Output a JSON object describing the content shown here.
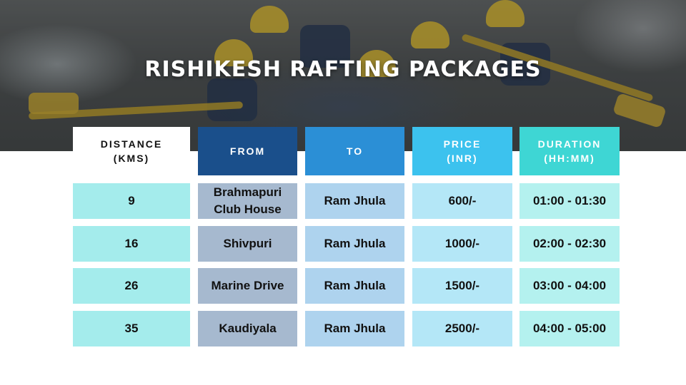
{
  "title": "RISHIKESH RAFTING PACKAGES",
  "table": {
    "headers": {
      "distance": {
        "line1": "DISTANCE",
        "line2": "(KMS)"
      },
      "from": {
        "line1": "FROM"
      },
      "to": {
        "line1": "TO"
      },
      "price": {
        "line1": "PRICE",
        "line2": "(INR)"
      },
      "duration": {
        "line1": "DURATION",
        "line2": "(HH:MM)"
      }
    },
    "rows": [
      {
        "distance": "9",
        "from_line1": "Brahmapuri",
        "from_line2": "Club House",
        "to": "Ram Jhula",
        "price": "600/-",
        "duration": "01:00 - 01:30"
      },
      {
        "distance": "16",
        "from_line1": "Shivpuri",
        "from_line2": "",
        "to": "Ram Jhula",
        "price": "1000/-",
        "duration": "02:00 - 02:30"
      },
      {
        "distance": "26",
        "from_line1": "Marine Drive",
        "from_line2": "",
        "to": "Ram Jhula",
        "price": "1500/-",
        "duration": "03:00 - 04:00"
      },
      {
        "distance": "35",
        "from_line1": "Kaudiyala",
        "from_line2": "",
        "to": "Ram Jhula",
        "price": "2500/-",
        "duration": "04:00 - 05:00"
      }
    ]
  }
}
